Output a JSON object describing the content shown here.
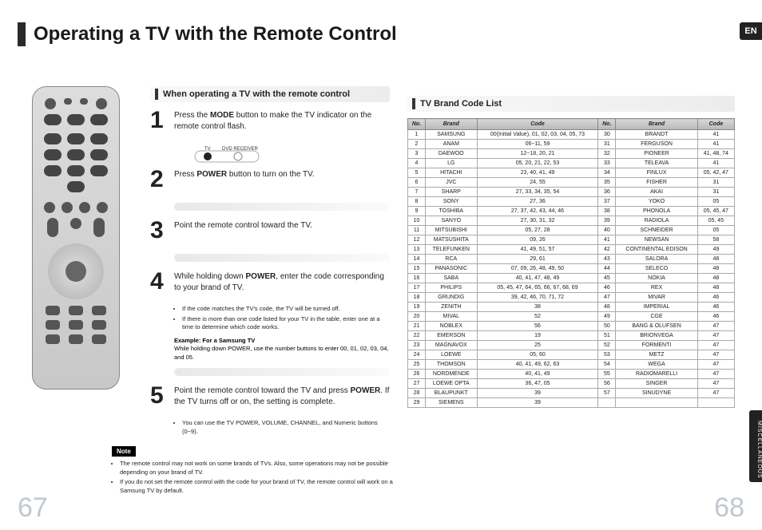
{
  "title": "Operating a TV with the Remote Control",
  "lang_tab": "EN",
  "side_tab": "MISCELLANEOUS",
  "page_left": "67",
  "page_right": "68",
  "section1_header": "When operating a TV with the remote control",
  "steps": [
    {
      "n": "1",
      "text_a": "Press the ",
      "bold1": "MODE",
      "text_b": " button to make the TV indicator on the remote control flash."
    },
    {
      "n": "2",
      "text_a": "Press ",
      "bold1": "POWER",
      "text_b": " button to turn on the TV."
    },
    {
      "n": "3",
      "text_a": "Point the remote control toward the TV.",
      "bold1": "",
      "text_b": ""
    },
    {
      "n": "4",
      "text_a": "While holding down ",
      "bold1": "POWER",
      "text_b": ", enter the code corresponding to your brand of TV."
    },
    {
      "n": "5",
      "text_a": "Point the remote control toward the TV and press ",
      "bold1": "POWER",
      "text_b": ". If the TV turns off or on, the setting is complete."
    }
  ],
  "mode_labels": {
    "tv": "TV",
    "rec": "DVD RECEIVER"
  },
  "step4_bullets": [
    "If the code matches the TV's code, the TV will be turned off.",
    "If there is more than one code listed for your TV in the table, enter one at a time to determine which code works."
  ],
  "example_label": "Example: For a Samsung TV",
  "example_text": "While holding down POWER, use the number buttons to enter 00, 01, 02, 03, 04, and 05.",
  "step5_bullet": "You can use the TV POWER, VOLUME, CHANNEL, and Numeric buttons (0~9).",
  "note_label": "Note",
  "notes": [
    "The remote control may not work on some brands of TVs. Also, some operations may not be possible depending on your brand of TV.",
    "If you do not set the remote control with the code for your brand of TV, the remote control will work on a Samsung TV by default."
  ],
  "table_header": "TV Brand Code List",
  "cols": [
    "No.",
    "Brand",
    "Code",
    "No.",
    "Brand",
    "Code"
  ],
  "rows": [
    [
      "1",
      "SAMSUNG",
      "00(Initial Value), 01, 02, 03, 04, 05, 73",
      "30",
      "BRANDT",
      "41"
    ],
    [
      "2",
      "ANAM",
      "06~11, 59",
      "31",
      "FERGUSON",
      "41"
    ],
    [
      "3",
      "DAEWOO",
      "12~18, 20, 21",
      "32",
      "PIONEER",
      "41, 48, 74"
    ],
    [
      "4",
      "LG",
      "05, 20, 21, 22, 53",
      "33",
      "TELEAVA",
      "41"
    ],
    [
      "5",
      "HITACHI",
      "23, 40, 41, 49",
      "34",
      "FINLUX",
      "05, 42, 47"
    ],
    [
      "6",
      "JVC",
      "24, 55",
      "35",
      "FISHER",
      "31"
    ],
    [
      "7",
      "SHARP",
      "27, 33, 34, 35, 54",
      "36",
      "AKAI",
      "31"
    ],
    [
      "8",
      "SONY",
      "27, 36",
      "37",
      "YOKO",
      "05"
    ],
    [
      "9",
      "TOSHIBA",
      "27, 37, 42, 43, 44, 46",
      "38",
      "PHONOLA",
      "05, 45, 47"
    ],
    [
      "10",
      "SANYO",
      "27, 30, 31, 32",
      "39",
      "RADIOLA",
      "05, 45"
    ],
    [
      "11",
      "MITSUBISHI",
      "05, 27, 28",
      "40",
      "SCHNEIDER",
      "05"
    ],
    [
      "12",
      "MATSUSHITA",
      "09, 26",
      "41",
      "NEWSAN",
      "58"
    ],
    [
      "13",
      "TELEFUNKEN",
      "41, 49, 51, 57",
      "42",
      "CONTINENTAL EDISON",
      "49"
    ],
    [
      "14",
      "RCA",
      "29, 61",
      "43",
      "SALORA",
      "48"
    ],
    [
      "15",
      "PANASONIC",
      "07, 09, 26, 48, 49, 50",
      "44",
      "SELECO",
      "48"
    ],
    [
      "16",
      "SABA",
      "40, 41, 47, 48, 49",
      "45",
      "NOKIA",
      "48"
    ],
    [
      "17",
      "PHILIPS",
      "05, 45, 47, 64, 65, 66, 67, 68, 69",
      "46",
      "REX",
      "48"
    ],
    [
      "18",
      "GRUNDIG",
      "39, 42, 46, 70, 71, 72",
      "47",
      "MIVAR",
      "46"
    ],
    [
      "19",
      "ZENITH",
      "38",
      "48",
      "IMPERIAL",
      "46"
    ],
    [
      "20",
      "MIVAL",
      "52",
      "49",
      "CGE",
      "46"
    ],
    [
      "21",
      "NOBLEX",
      "56",
      "50",
      "BANG & OLUFSEN",
      "47"
    ],
    [
      "22",
      "EMERSON",
      "19",
      "51",
      "BRIONVEGA",
      "47"
    ],
    [
      "23",
      "MAGNAVOX",
      "25",
      "52",
      "FORMENTI",
      "47"
    ],
    [
      "24",
      "LOEWE",
      "05, 60",
      "53",
      "METZ",
      "47"
    ],
    [
      "25",
      "THOMSON",
      "40, 41, 49, 62, 63",
      "54",
      "WEGA",
      "47"
    ],
    [
      "26",
      "NORDMENDE",
      "40, 41, 49",
      "55",
      "RADIOMARELLI",
      "47"
    ],
    [
      "27",
      "LOEWE OPTA",
      "36, 47, 05",
      "56",
      "SINGER",
      "47"
    ],
    [
      "28",
      "BLAUPUNKT",
      "39",
      "57",
      "SINUDYNE",
      "47"
    ],
    [
      "29",
      "SIEMENS",
      "39",
      "",
      "",
      ""
    ]
  ]
}
